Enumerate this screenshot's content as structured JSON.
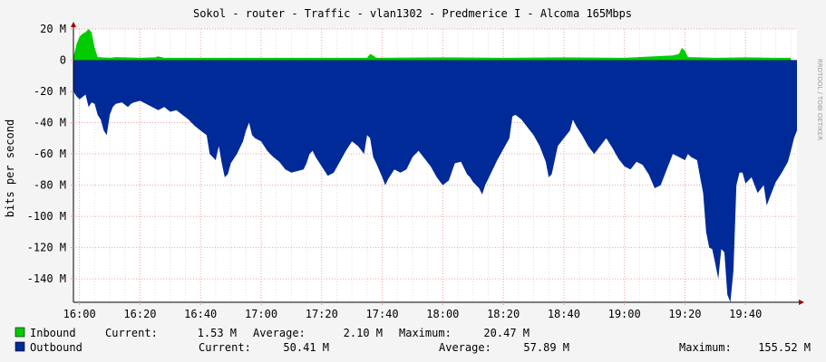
{
  "chart_data": {
    "type": "area",
    "title": "Sokol - router - Traffic - vlan1302 - Predmerice I - Alcoma 165Mbps",
    "ylabel": "bits per second",
    "xlabel": "",
    "ylim": [
      -155,
      20
    ],
    "y_ticks": [
      20,
      0,
      -20,
      -40,
      -60,
      -80,
      -100,
      -120,
      -140
    ],
    "y_tick_labels": [
      "20 M",
      "0",
      "-20 M",
      "-40 M",
      "-60 M",
      "-80 M",
      "-100 M",
      "-120 M",
      "-140 M"
    ],
    "x_tick_labels": [
      "16:00",
      "16:20",
      "16:40",
      "17:00",
      "17:20",
      "17:40",
      "18:00",
      "18:20",
      "18:40",
      "19:00",
      "19:20",
      "19:40"
    ],
    "x_ticks_minutes": [
      0,
      20,
      40,
      60,
      80,
      100,
      120,
      140,
      160,
      180,
      200,
      220
    ],
    "xlim_minutes": [
      -2,
      237
    ],
    "grid": true,
    "watermark": "RRDTOOL / TOBI OETIKER",
    "series": [
      {
        "name": "Inbound",
        "color": "#00cc00",
        "points": [
          [
            -2,
            2
          ],
          [
            -1,
            10
          ],
          [
            0,
            15
          ],
          [
            1,
            17
          ],
          [
            2,
            18
          ],
          [
            3,
            20
          ],
          [
            4,
            18
          ],
          [
            5,
            8
          ],
          [
            6,
            2
          ],
          [
            10,
            1.5
          ],
          [
            12,
            2
          ],
          [
            20,
            1.5
          ],
          [
            25,
            1.8
          ],
          [
            26,
            2.5
          ],
          [
            28,
            1.5
          ],
          [
            50,
            1.5
          ],
          [
            60,
            1.5
          ],
          [
            80,
            1.5
          ],
          [
            95,
            1.5
          ],
          [
            96,
            4
          ],
          [
            97,
            3
          ],
          [
            98,
            1.5
          ],
          [
            120,
            1.8
          ],
          [
            140,
            1.5
          ],
          [
            160,
            1.8
          ],
          [
            180,
            1.5
          ],
          [
            196,
            3
          ],
          [
            198,
            4
          ],
          [
            199,
            8
          ],
          [
            200,
            6
          ],
          [
            201,
            2
          ],
          [
            210,
            1.5
          ],
          [
            220,
            1.8
          ],
          [
            230,
            1.5
          ],
          [
            235,
            1.5
          ]
        ],
        "current": "1.53 M",
        "average": "2.10 M",
        "maximum": "20.47 M"
      },
      {
        "name": "Outbound",
        "color": "#002a97",
        "points": [
          [
            -2,
            -20
          ],
          [
            -1,
            -23
          ],
          [
            0,
            -25
          ],
          [
            2,
            -22
          ],
          [
            3,
            -30
          ],
          [
            4,
            -27
          ],
          [
            5,
            -28
          ],
          [
            6,
            -35
          ],
          [
            7,
            -38
          ],
          [
            8,
            -45
          ],
          [
            9,
            -48
          ],
          [
            10,
            -35
          ],
          [
            11,
            -30
          ],
          [
            12,
            -28
          ],
          [
            14,
            -27
          ],
          [
            16,
            -30
          ],
          [
            17,
            -28
          ],
          [
            18,
            -27
          ],
          [
            20,
            -26
          ],
          [
            22,
            -28
          ],
          [
            24,
            -30
          ],
          [
            26,
            -32
          ],
          [
            28,
            -30
          ],
          [
            30,
            -33
          ],
          [
            32,
            -32
          ],
          [
            34,
            -35
          ],
          [
            36,
            -38
          ],
          [
            38,
            -42
          ],
          [
            40,
            -45
          ],
          [
            42,
            -48
          ],
          [
            43,
            -60
          ],
          [
            44,
            -62
          ],
          [
            45,
            -64
          ],
          [
            46,
            -55
          ],
          [
            47,
            -66
          ],
          [
            48,
            -75
          ],
          [
            49,
            -73
          ],
          [
            50,
            -66
          ],
          [
            52,
            -60
          ],
          [
            54,
            -52
          ],
          [
            55,
            -45
          ],
          [
            56,
            -40
          ],
          [
            57,
            -48
          ],
          [
            58,
            -50
          ],
          [
            60,
            -52
          ],
          [
            62,
            -58
          ],
          [
            64,
            -62
          ],
          [
            66,
            -65
          ],
          [
            68,
            -70
          ],
          [
            70,
            -72
          ],
          [
            72,
            -71
          ],
          [
            74,
            -70
          ],
          [
            75,
            -66
          ],
          [
            76,
            -60
          ],
          [
            77,
            -58
          ],
          [
            78,
            -62
          ],
          [
            80,
            -68
          ],
          [
            82,
            -74
          ],
          [
            84,
            -72
          ],
          [
            86,
            -65
          ],
          [
            88,
            -58
          ],
          [
            90,
            -52
          ],
          [
            92,
            -55
          ],
          [
            94,
            -60
          ],
          [
            95,
            -48
          ],
          [
            96,
            -50
          ],
          [
            97,
            -62
          ],
          [
            98,
            -66
          ],
          [
            100,
            -75
          ],
          [
            101,
            -80
          ],
          [
            102,
            -76
          ],
          [
            104,
            -70
          ],
          [
            106,
            -72
          ],
          [
            108,
            -70
          ],
          [
            110,
            -62
          ],
          [
            112,
            -58
          ],
          [
            114,
            -63
          ],
          [
            116,
            -68
          ],
          [
            118,
            -75
          ],
          [
            120,
            -80
          ],
          [
            122,
            -77
          ],
          [
            124,
            -66
          ],
          [
            126,
            -65
          ],
          [
            128,
            -73
          ],
          [
            129,
            -75
          ],
          [
            130,
            -78
          ],
          [
            132,
            -82
          ],
          [
            133,
            -86
          ],
          [
            134,
            -80
          ],
          [
            136,
            -72
          ],
          [
            138,
            -64
          ],
          [
            140,
            -57
          ],
          [
            142,
            -50
          ],
          [
            143,
            -36
          ],
          [
            144,
            -35
          ],
          [
            146,
            -38
          ],
          [
            148,
            -43
          ],
          [
            150,
            -48
          ],
          [
            152,
            -55
          ],
          [
            154,
            -65
          ],
          [
            155,
            -75
          ],
          [
            156,
            -73
          ],
          [
            158,
            -55
          ],
          [
            160,
            -50
          ],
          [
            162,
            -45
          ],
          [
            163,
            -38
          ],
          [
            164,
            -42
          ],
          [
            166,
            -48
          ],
          [
            168,
            -55
          ],
          [
            170,
            -60
          ],
          [
            172,
            -55
          ],
          [
            174,
            -50
          ],
          [
            176,
            -56
          ],
          [
            178,
            -63
          ],
          [
            180,
            -68
          ],
          [
            182,
            -70
          ],
          [
            184,
            -65
          ],
          [
            186,
            -67
          ],
          [
            188,
            -73
          ],
          [
            190,
            -82
          ],
          [
            192,
            -80
          ],
          [
            194,
            -70
          ],
          [
            196,
            -60
          ],
          [
            198,
            -62
          ],
          [
            200,
            -64
          ],
          [
            201,
            -60
          ],
          [
            202,
            -62
          ],
          [
            204,
            -64
          ],
          [
            205,
            -75
          ],
          [
            206,
            -85
          ],
          [
            207,
            -110
          ],
          [
            208,
            -120
          ],
          [
            209,
            -121
          ],
          [
            210,
            -130
          ],
          [
            211,
            -140
          ],
          [
            212,
            -121
          ],
          [
            213,
            -123
          ],
          [
            214,
            -150
          ],
          [
            215,
            -155
          ],
          [
            216,
            -135
          ],
          [
            217,
            -80
          ],
          [
            218,
            -72
          ],
          [
            219,
            -72
          ],
          [
            220,
            -79
          ],
          [
            222,
            -75
          ],
          [
            224,
            -85
          ],
          [
            226,
            -80
          ],
          [
            227,
            -93
          ],
          [
            228,
            -88
          ],
          [
            230,
            -78
          ],
          [
            232,
            -72
          ],
          [
            234,
            -65
          ],
          [
            235,
            -58
          ],
          [
            236,
            -50
          ],
          [
            238,
            -45
          ],
          [
            240,
            -47
          ],
          [
            242,
            -56
          ],
          [
            243,
            -62
          ],
          [
            244,
            -60
          ],
          [
            245,
            -52
          ],
          [
            246,
            -48
          ],
          [
            248,
            -45
          ],
          [
            249,
            -49
          ],
          [
            250,
            -50
          ],
          [
            251,
            -48
          ]
        ],
        "current": "50.41 M",
        "average": "57.89 M",
        "maximum": "155.52 M"
      }
    ]
  },
  "legend": {
    "inbound": {
      "name": "Inbound",
      "current_label": "Current:",
      "current": "1.53 M",
      "average_label": "Average:",
      "average": "2.10 M",
      "maximum_label": "Maximum:",
      "maximum": "20.47 M"
    },
    "outbound": {
      "name": "Outbound",
      "current_label": "Current:",
      "current": "50.41 M",
      "average_label": "Average:",
      "average": "57.89 M",
      "maximum_label": "Maximum:",
      "maximum": "155.52 M"
    }
  }
}
